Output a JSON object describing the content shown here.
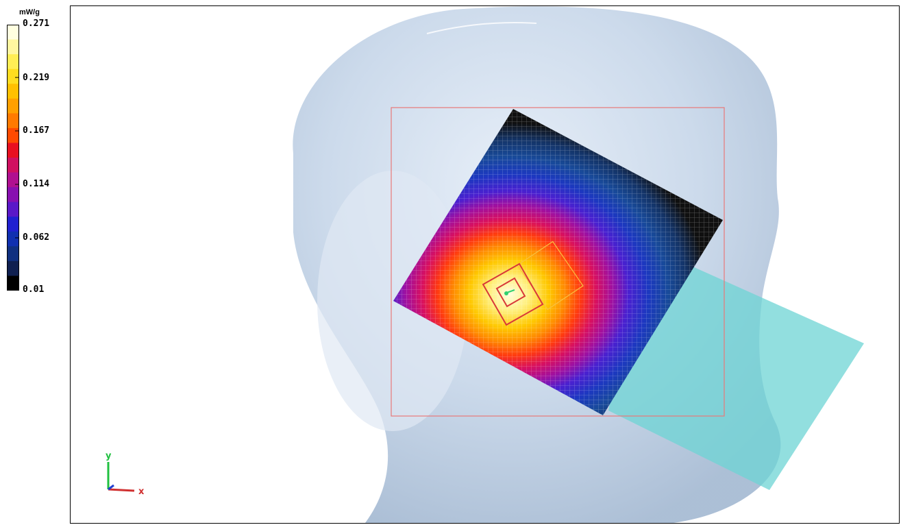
{
  "legend": {
    "unit": "mW/g",
    "ticks": [
      "0.271",
      "0.219",
      "0.167",
      "0.114",
      "0.062",
      "0.01"
    ],
    "band_colors": [
      "#ffffe0",
      "#fff7a0",
      "#ffee55",
      "#ffdd20",
      "#ffc000",
      "#ffa000",
      "#ff7a00",
      "#ff4a00",
      "#e81020",
      "#d01060",
      "#b01090",
      "#8810b0",
      "#5a18c8",
      "#2020d0",
      "#1030b0",
      "#103080",
      "#102050",
      "#000000"
    ]
  },
  "axes": {
    "y_label": "y",
    "x_label": "x"
  },
  "colors": {
    "head": "#c5d5e8",
    "phone": "#70d6d6",
    "frame": "#e87878",
    "hotspot_peak": "#fffde0",
    "background_field": "#101010"
  }
}
